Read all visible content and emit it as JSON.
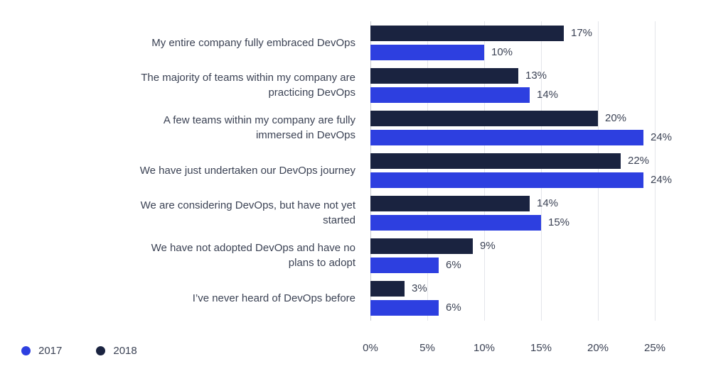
{
  "chart_data": {
    "type": "bar",
    "orientation": "horizontal",
    "title": "",
    "xlabel": "",
    "ylabel": "",
    "grid": true,
    "legend_position": "bottom-left",
    "value_suffix": "%",
    "xlim": [
      0,
      25
    ],
    "tick_values": [
      0,
      5,
      10,
      15,
      20,
      25
    ],
    "ticks": [
      "0%",
      "5%",
      "10%",
      "15%",
      "20%",
      "25%"
    ],
    "categories": [
      "My entire company fully embraced DevOps",
      "The majority of teams within my company are practicing DevOps",
      "A few teams within my company are fully immersed in DevOps",
      "We have just undertaken our DevOps journey",
      "We are considering DevOps, but have not yet started",
      "We have not adopted DevOps and have no plans to adopt",
      "I’ve  never heard of DevOps before"
    ],
    "series": [
      {
        "name": "2018",
        "color": "#1a2340",
        "values": [
          17,
          13,
          20,
          22,
          14,
          9,
          3
        ]
      },
      {
        "name": "2017",
        "color": "#2d3fe0",
        "values": [
          10,
          14,
          24,
          24,
          15,
          6,
          6
        ]
      }
    ],
    "legend": [
      {
        "label": "2017",
        "color": "#2d3fe0"
      },
      {
        "label": "2018",
        "color": "#1a2340"
      }
    ],
    "colors": {
      "text": "#3b4254",
      "gridline": "#e4e5ea",
      "axis_line": "#c7c9d1",
      "background": "#ffffff"
    }
  }
}
